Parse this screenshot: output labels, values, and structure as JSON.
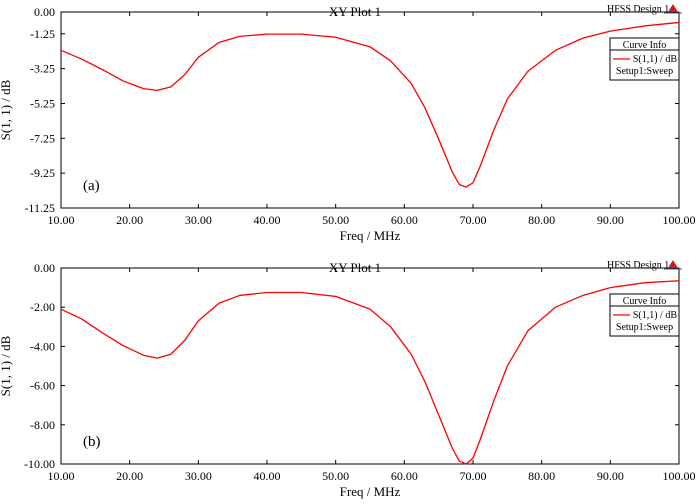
{
  "chart_data": [
    {
      "type": "line",
      "panel_label": "(a)",
      "title": "XY Plot 1",
      "design_label": "HFSS Design 1",
      "xlabel": "Freq / MHz",
      "ylabel": "S(1, 1) / dB",
      "xlim": [
        10,
        100
      ],
      "ylim": [
        -11.25,
        0
      ],
      "x_ticks": [
        "10.00",
        "20.00",
        "30.00",
        "40.00",
        "50.00",
        "60.00",
        "70.00",
        "80.00",
        "90.00",
        "100.00"
      ],
      "y_ticks": [
        "0.00",
        "-1.25",
        "-3.25",
        "-5.25",
        "-7.25",
        "-9.25",
        "-11.25"
      ],
      "y_tick_values": [
        0,
        -1.25,
        -3.25,
        -5.25,
        -7.25,
        -9.25,
        -11.25
      ],
      "legend": {
        "header": "Curve Info",
        "entry": "S(1,1) / dB",
        "setup": "Setup1:Sweep"
      },
      "color": "#ff0000",
      "series": [
        {
          "name": "S(1,1) / dB",
          "x": [
            10,
            13,
            16,
            19,
            22,
            24,
            26,
            28,
            30,
            33,
            36,
            40,
            45,
            50,
            55,
            58,
            61,
            63,
            65,
            67,
            68,
            69,
            70,
            71,
            73,
            75,
            78,
            82,
            86,
            90,
            95,
            100
          ],
          "y": [
            -2.2,
            -2.7,
            -3.3,
            -3.95,
            -4.4,
            -4.5,
            -4.3,
            -3.6,
            -2.6,
            -1.75,
            -1.4,
            -1.27,
            -1.27,
            -1.45,
            -2.0,
            -2.8,
            -4.1,
            -5.5,
            -7.3,
            -9.2,
            -9.9,
            -10.05,
            -9.8,
            -8.9,
            -6.8,
            -5.0,
            -3.4,
            -2.2,
            -1.5,
            -1.1,
            -0.8,
            -0.6
          ]
        }
      ]
    },
    {
      "type": "line",
      "panel_label": "(b)",
      "title": "XY Plot 1",
      "design_label": "HFSS Design 1",
      "xlabel": "Freq / MHz",
      "ylabel": "S(1, 1) / dB",
      "xlim": [
        10,
        100
      ],
      "ylim": [
        -10,
        0
      ],
      "x_ticks": [
        "10.00",
        "20.00",
        "30.00",
        "40.00",
        "50.00",
        "60.00",
        "70.00",
        "80.00",
        "90.00",
        "100.00"
      ],
      "y_ticks": [
        "0.00",
        "-2.00",
        "-4.00",
        "-6.00",
        "-8.00",
        "-10.00"
      ],
      "y_tick_values": [
        0,
        -2,
        -4,
        -6,
        -8,
        -10
      ],
      "legend": {
        "header": "Curve Info",
        "entry": "S(1,1) / dB",
        "setup": "Setup1:Sweep"
      },
      "color": "#ff0000",
      "series": [
        {
          "name": "S(1,1) / dB",
          "x": [
            10,
            13,
            16,
            19,
            22,
            24,
            26,
            28,
            30,
            33,
            36,
            40,
            45,
            50,
            55,
            58,
            61,
            63,
            65,
            67,
            68,
            69,
            70,
            71,
            73,
            75,
            78,
            82,
            86,
            90,
            95,
            100
          ],
          "y": [
            -2.1,
            -2.6,
            -3.3,
            -3.95,
            -4.45,
            -4.6,
            -4.4,
            -3.7,
            -2.7,
            -1.8,
            -1.4,
            -1.25,
            -1.25,
            -1.45,
            -2.1,
            -3.0,
            -4.4,
            -5.8,
            -7.5,
            -9.2,
            -9.85,
            -10.0,
            -9.7,
            -8.8,
            -6.8,
            -5.0,
            -3.2,
            -2.0,
            -1.4,
            -1.0,
            -0.75,
            -0.65
          ]
        }
      ]
    }
  ]
}
